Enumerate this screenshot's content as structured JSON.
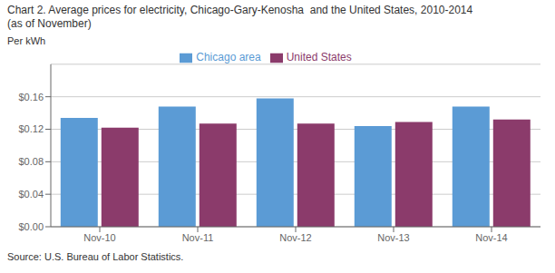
{
  "chart_data": {
    "type": "bar",
    "title": "Chart 2. Average prices for electricity, Chicago-Gary-Kenosha  and the United States, 2010-2014",
    "subtitle": "(as of November)",
    "ylabel": "Per kWh",
    "source": "Source: U.S. Bureau of Labor Statistics.",
    "categories": [
      "Nov-10",
      "Nov-11",
      "Nov-12",
      "Nov-13",
      "Nov-14"
    ],
    "series": [
      {
        "name": "Chicago area",
        "color": "#5B9BD5",
        "values": [
          0.134,
          0.148,
          0.158,
          0.124,
          0.148
        ]
      },
      {
        "name": "United States",
        "color": "#8B3B6B",
        "values": [
          0.122,
          0.127,
          0.127,
          0.129,
          0.132
        ]
      }
    ],
    "ylim": [
      0,
      0.2
    ],
    "yticks": [
      {
        "value": 0,
        "label": "$0.00"
      },
      {
        "value": 0.04,
        "label": "$0.04"
      },
      {
        "value": 0.08,
        "label": "$0.08"
      },
      {
        "value": 0.12,
        "label": "$0.12"
      },
      {
        "value": 0.16,
        "label": "$0.16"
      }
    ],
    "grid": true,
    "legend": "top"
  }
}
